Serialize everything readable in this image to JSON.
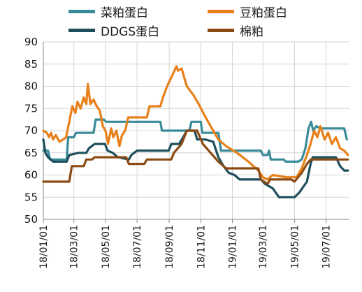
{
  "chart_data": {
    "type": "line",
    "title": "",
    "xlabel": "",
    "ylabel": "",
    "ylim": [
      50,
      90
    ],
    "yticks": [
      50,
      55,
      60,
      65,
      70,
      75,
      80,
      85,
      90
    ],
    "xlim": [
      "2018-01-01",
      "2019-08-15"
    ],
    "xticks": [
      "2018-01-01",
      "2018-03-01",
      "2018-05-01",
      "2018-07-01",
      "2018-09-01",
      "2018-11-01",
      "2019-01-01",
      "2019-03-01",
      "2019-05-01",
      "2019-07-01"
    ],
    "xtick_labels": [
      "18/01/01",
      "18/03/01",
      "18/05/01",
      "18/07/01",
      "18/09/01",
      "18/11/01",
      "19/01/01",
      "19/03/01",
      "19/05/01",
      "19/07/01"
    ],
    "grid": {
      "x": true,
      "y": true
    },
    "legend_position": "top",
    "series": [
      {
        "name": "菜粕蛋白",
        "color": "#3a8b9a",
        "points": [
          [
            "2018-01-01",
            65.5
          ],
          [
            "2018-01-10",
            65.5
          ],
          [
            "2018-01-14",
            63.5
          ],
          [
            "2018-02-15",
            63.5
          ],
          [
            "2018-02-18",
            68.5
          ],
          [
            "2018-03-01",
            68.5
          ],
          [
            "2018-03-05",
            69.5
          ],
          [
            "2018-04-08",
            69.5
          ],
          [
            "2018-04-12",
            72.5
          ],
          [
            "2018-04-28",
            72.5
          ],
          [
            "2018-05-02",
            72.0
          ],
          [
            "2018-08-15",
            72.0
          ],
          [
            "2018-08-18",
            70.0
          ],
          [
            "2018-10-10",
            70.0
          ],
          [
            "2018-10-14",
            72.0
          ],
          [
            "2018-11-01",
            72.0
          ],
          [
            "2018-11-04",
            69.5
          ],
          [
            "2018-12-05",
            69.5
          ],
          [
            "2018-12-10",
            65.5
          ],
          [
            "2019-02-25",
            65.5
          ],
          [
            "2019-03-01",
            64.5
          ],
          [
            "2019-03-10",
            64.5
          ],
          [
            "2019-03-13",
            65.5
          ],
          [
            "2019-03-16",
            63.5
          ],
          [
            "2019-04-10",
            63.5
          ],
          [
            "2019-04-14",
            63.0
          ],
          [
            "2019-05-08",
            63.0
          ],
          [
            "2019-05-15",
            63.5
          ],
          [
            "2019-05-22",
            66.0
          ],
          [
            "2019-05-28",
            70.5
          ],
          [
            "2019-06-02",
            72.0
          ],
          [
            "2019-06-06",
            70.0
          ],
          [
            "2019-06-12",
            71.0
          ],
          [
            "2019-06-20",
            70.5
          ],
          [
            "2019-08-05",
            70.5
          ],
          [
            "2019-08-10",
            68.0
          ]
        ]
      },
      {
        "name": "豆粕蛋白",
        "color": "#e8801a",
        "points": [
          [
            "2018-01-01",
            70.0
          ],
          [
            "2018-01-08",
            69.5
          ],
          [
            "2018-01-12",
            68.5
          ],
          [
            "2018-01-16",
            69.5
          ],
          [
            "2018-01-20",
            68.0
          ],
          [
            "2018-01-25",
            69.0
          ],
          [
            "2018-02-01",
            67.5
          ],
          [
            "2018-02-08",
            68.0
          ],
          [
            "2018-02-14",
            68.5
          ],
          [
            "2018-02-20",
            72.0
          ],
          [
            "2018-02-26",
            75.5
          ],
          [
            "2018-03-04",
            74.0
          ],
          [
            "2018-03-08",
            76.5
          ],
          [
            "2018-03-14",
            75.0
          ],
          [
            "2018-03-20",
            77.5
          ],
          [
            "2018-03-25",
            76.0
          ],
          [
            "2018-03-28",
            80.5
          ],
          [
            "2018-04-02",
            76.0
          ],
          [
            "2018-04-08",
            77.0
          ],
          [
            "2018-04-14",
            75.5
          ],
          [
            "2018-04-20",
            74.5
          ],
          [
            "2018-04-26",
            71.0
          ],
          [
            "2018-05-01",
            70.0
          ],
          [
            "2018-05-06",
            67.0
          ],
          [
            "2018-05-12",
            70.5
          ],
          [
            "2018-05-16",
            68.5
          ],
          [
            "2018-05-22",
            70.0
          ],
          [
            "2018-05-28",
            66.5
          ],
          [
            "2018-06-02",
            69.0
          ],
          [
            "2018-06-08",
            70.0
          ],
          [
            "2018-06-14",
            73.0
          ],
          [
            "2018-07-20",
            73.0
          ],
          [
            "2018-07-25",
            75.5
          ],
          [
            "2018-08-15",
            75.5
          ],
          [
            "2018-08-20",
            77.5
          ],
          [
            "2018-08-28",
            80.0
          ],
          [
            "2018-09-05",
            82.0
          ],
          [
            "2018-09-15",
            84.5
          ],
          [
            "2018-09-18",
            83.5
          ],
          [
            "2018-09-25",
            84.0
          ],
          [
            "2018-10-05",
            80.0
          ],
          [
            "2018-10-18",
            78.0
          ],
          [
            "2018-10-28",
            76.0
          ],
          [
            "2018-11-08",
            73.5
          ],
          [
            "2018-11-20",
            71.0
          ],
          [
            "2018-12-05",
            68.0
          ],
          [
            "2018-12-20",
            66.5
          ],
          [
            "2019-01-10",
            65.0
          ],
          [
            "2019-02-01",
            63.0
          ],
          [
            "2019-02-20",
            61.0
          ],
          [
            "2019-03-01",
            59.5
          ],
          [
            "2019-03-10",
            59.0
          ],
          [
            "2019-03-20",
            60.0
          ],
          [
            "2019-04-15",
            59.5
          ],
          [
            "2019-05-05",
            59.5
          ],
          [
            "2019-05-15",
            61.5
          ],
          [
            "2019-05-25",
            64.5
          ],
          [
            "2019-06-01",
            67.0
          ],
          [
            "2019-06-08",
            70.0
          ],
          [
            "2019-06-14",
            68.5
          ],
          [
            "2019-06-20",
            71.0
          ],
          [
            "2019-06-28",
            68.0
          ],
          [
            "2019-07-05",
            69.5
          ],
          [
            "2019-07-12",
            67.0
          ],
          [
            "2019-07-20",
            68.5
          ],
          [
            "2019-07-28",
            66.0
          ],
          [
            "2019-08-05",
            65.5
          ],
          [
            "2019-08-12",
            64.5
          ]
        ]
      },
      {
        "name": "DDGS蛋白",
        "color": "#1d4e5c",
        "points": [
          [
            "2018-01-01",
            68.0
          ],
          [
            "2018-01-05",
            65.0
          ],
          [
            "2018-01-10",
            64.0
          ],
          [
            "2018-01-20",
            63.0
          ],
          [
            "2018-02-15",
            63.0
          ],
          [
            "2018-02-20",
            64.5
          ],
          [
            "2018-03-10",
            65.0
          ],
          [
            "2018-03-25",
            65.0
          ],
          [
            "2018-03-30",
            66.0
          ],
          [
            "2018-04-10",
            67.0
          ],
          [
            "2018-04-30",
            67.0
          ],
          [
            "2018-05-05",
            65.5
          ],
          [
            "2018-05-15",
            65.0
          ],
          [
            "2018-05-25",
            64.0
          ],
          [
            "2018-06-15",
            63.5
          ],
          [
            "2018-06-20",
            64.5
          ],
          [
            "2018-07-01",
            65.5
          ],
          [
            "2018-08-31",
            65.5
          ],
          [
            "2018-09-05",
            67.0
          ],
          [
            "2018-09-20",
            67.0
          ],
          [
            "2018-09-28",
            68.5
          ],
          [
            "2018-10-05",
            70.0
          ],
          [
            "2018-10-20",
            70.0
          ],
          [
            "2018-10-25",
            68.0
          ],
          [
            "2018-11-10",
            68.0
          ],
          [
            "2018-11-25",
            67.5
          ],
          [
            "2018-12-05",
            64.0
          ],
          [
            "2018-12-15",
            62.0
          ],
          [
            "2018-12-25",
            60.5
          ],
          [
            "2019-01-05",
            60.0
          ],
          [
            "2019-01-15",
            59.0
          ],
          [
            "2019-02-25",
            59.0
          ],
          [
            "2019-03-05",
            58.0
          ],
          [
            "2019-03-20",
            57.0
          ],
          [
            "2019-04-01",
            55.0
          ],
          [
            "2019-05-01",
            55.0
          ],
          [
            "2019-05-10",
            56.0
          ],
          [
            "2019-05-25",
            58.5
          ],
          [
            "2019-06-01",
            62.5
          ],
          [
            "2019-06-05",
            64.0
          ],
          [
            "2019-07-20",
            64.0
          ],
          [
            "2019-07-28",
            62.0
          ],
          [
            "2019-08-05",
            61.0
          ],
          [
            "2019-08-12",
            61.0
          ]
        ]
      },
      {
        "name": "棉粕",
        "color": "#8c4a13",
        "points": [
          [
            "2018-01-01",
            58.5
          ],
          [
            "2018-02-20",
            58.5
          ],
          [
            "2018-02-25",
            62.0
          ],
          [
            "2018-03-20",
            62.0
          ],
          [
            "2018-03-25",
            63.5
          ],
          [
            "2018-04-05",
            63.5
          ],
          [
            "2018-04-10",
            64.0
          ],
          [
            "2018-06-10",
            64.0
          ],
          [
            "2018-06-15",
            62.5
          ],
          [
            "2018-07-15",
            62.5
          ],
          [
            "2018-07-20",
            63.5
          ],
          [
            "2018-09-05",
            63.5
          ],
          [
            "2018-09-10",
            65.0
          ],
          [
            "2018-09-25",
            67.0
          ],
          [
            "2018-10-05",
            70.0
          ],
          [
            "2018-10-25",
            70.0
          ],
          [
            "2018-11-05",
            67.0
          ],
          [
            "2018-11-20",
            65.0
          ],
          [
            "2018-12-05",
            63.0
          ],
          [
            "2018-12-20",
            61.5
          ],
          [
            "2019-02-20",
            61.5
          ],
          [
            "2019-02-25",
            59.0
          ],
          [
            "2019-03-10",
            58.0
          ],
          [
            "2019-03-15",
            59.0
          ],
          [
            "2019-04-25",
            59.0
          ],
          [
            "2019-05-01",
            58.5
          ],
          [
            "2019-05-15",
            60.5
          ],
          [
            "2019-05-25",
            62.5
          ],
          [
            "2019-06-01",
            63.5
          ],
          [
            "2019-08-12",
            63.5
          ]
        ]
      }
    ]
  }
}
